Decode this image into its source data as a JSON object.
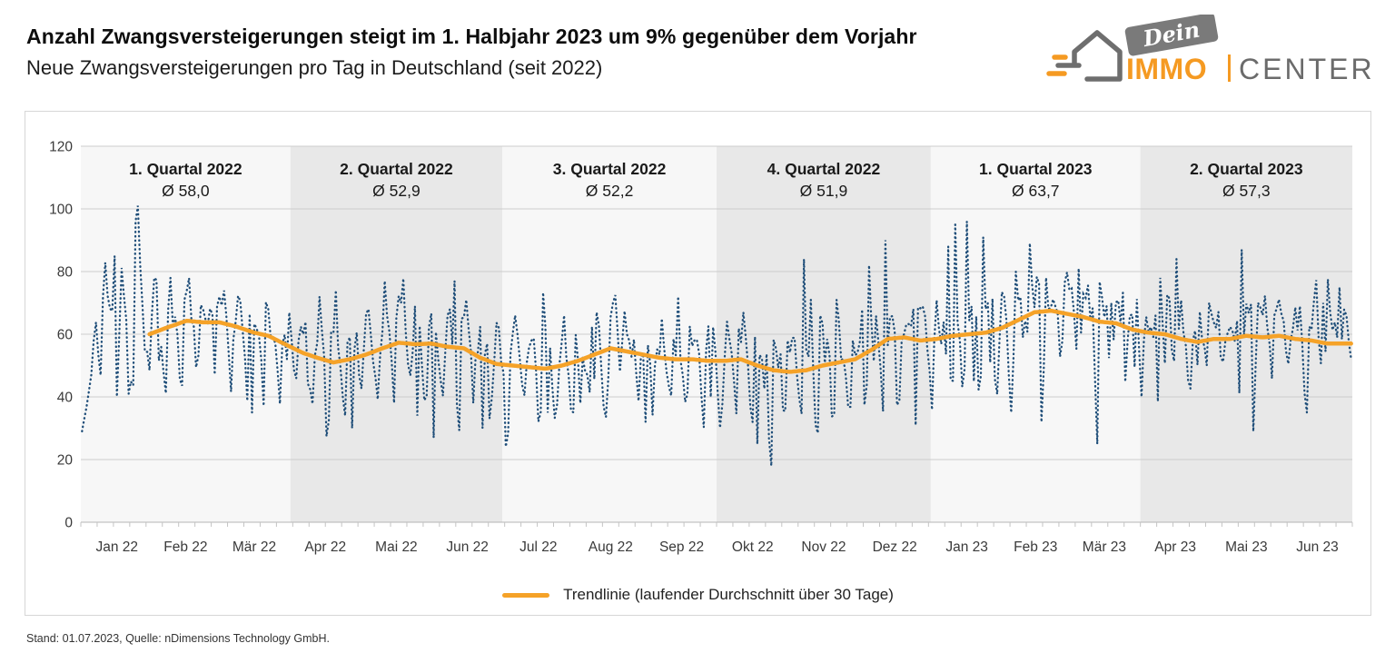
{
  "header": {
    "title": "Anzahl Zwangsversteigerungen steigt im 1. Halbjahr 2023 um 9% gegenüber dem Vorjahr",
    "subtitle": "Neue Zwangsversteigerungen pro Tag in Deutschland (seit 2022)"
  },
  "logo": {
    "banner_text": "Dein",
    "immo": "IMMO",
    "center": "CENTER",
    "orange": "#F59A22",
    "gray": "#6E6E6E"
  },
  "footer": {
    "text": "Stand: 01.07.2023, Quelle: nDimensions Technology GmbH."
  },
  "chart_data": {
    "type": "line",
    "title": "Neue Zwangsversteigerungen pro Tag in Deutschland (seit 2022)",
    "ylim": [
      0,
      120
    ],
    "yticks": [
      0,
      20,
      40,
      60,
      80,
      100,
      120
    ],
    "grid": true,
    "total_days": 546,
    "start_weekday": "Saturday",
    "month_labels": [
      "Jan 22",
      "Feb 22",
      "Mär 22",
      "Apr 22",
      "Mai 22",
      "Jun 22",
      "Jul 22",
      "Aug 22",
      "Sep 22",
      "Okt 22",
      "Nov 22",
      "Dez 22",
      "Jan 23",
      "Feb 23",
      "Mär 23",
      "Apr 23",
      "Mai 23",
      "Jun 23"
    ],
    "month_lengths": [
      31,
      28,
      31,
      30,
      31,
      30,
      31,
      31,
      30,
      31,
      30,
      31,
      31,
      28,
      31,
      30,
      31,
      30
    ],
    "quarters": [
      {
        "label": "1. Quartal 2022",
        "avg_label": "Ø 58,0",
        "avg": 58.0,
        "start_day": 0,
        "end_day": 90
      },
      {
        "label": "2. Quartal 2022",
        "avg_label": "Ø 52,9",
        "avg": 52.9,
        "start_day": 90,
        "end_day": 181
      },
      {
        "label": "3. Quartal 2022",
        "avg_label": "Ø 52,2",
        "avg": 52.2,
        "start_day": 181,
        "end_day": 273
      },
      {
        "label": "4. Quartal 2022",
        "avg_label": "Ø 51,9",
        "avg": 51.9,
        "start_day": 273,
        "end_day": 365
      },
      {
        "label": "1. Quartal 2023",
        "avg_label": "Ø 63,7",
        "avg": 63.7,
        "start_day": 365,
        "end_day": 455
      },
      {
        "label": "2. Quartal 2023",
        "avg_label": "Ø 57,3",
        "avg": 57.3,
        "start_day": 455,
        "end_day": 546
      }
    ],
    "legend": {
      "label": "Trendlinie (laufender Durchschnitt über 30 Tage)",
      "position": "bottom-center"
    },
    "colors": {
      "daily": "#1F4E79",
      "trend": "#F5A228",
      "band_light": "#F7F7F7",
      "band_dark": "#E8E8E8",
      "grid": "#CDCDCD",
      "axis": "#B5B5B5",
      "tick": "#C4C4C4",
      "label": "#3A3A3A",
      "quarter_text": "#1A1A1A",
      "frame": "#D6D6D6"
    },
    "trend_points": [
      [
        29,
        60
      ],
      [
        36,
        62
      ],
      [
        45,
        64.3
      ],
      [
        52,
        63.8
      ],
      [
        59,
        63.8
      ],
      [
        66,
        62.5
      ],
      [
        74,
        60.5
      ],
      [
        80,
        59.5
      ],
      [
        88,
        56.5
      ],
      [
        95,
        54
      ],
      [
        101,
        52.5
      ],
      [
        108,
        51
      ],
      [
        115,
        52
      ],
      [
        122,
        53.5
      ],
      [
        129,
        55.5
      ],
      [
        136,
        57.3
      ],
      [
        143,
        56.8
      ],
      [
        150,
        57
      ],
      [
        157,
        56
      ],
      [
        164,
        55.5
      ],
      [
        171,
        52.5
      ],
      [
        178,
        50.5
      ],
      [
        185,
        50
      ],
      [
        192,
        49.5
      ],
      [
        199,
        49
      ],
      [
        206,
        50
      ],
      [
        213,
        51.5
      ],
      [
        220,
        53.5
      ],
      [
        227,
        55.5
      ],
      [
        234,
        54.5
      ],
      [
        241,
        53.5
      ],
      [
        248,
        52.5
      ],
      [
        255,
        52
      ],
      [
        262,
        52
      ],
      [
        269,
        51.5
      ],
      [
        276,
        51.5
      ],
      [
        283,
        52
      ],
      [
        290,
        50
      ],
      [
        297,
        48.5
      ],
      [
        304,
        48
      ],
      [
        311,
        48.5
      ],
      [
        318,
        50
      ],
      [
        325,
        51
      ],
      [
        332,
        52
      ],
      [
        339,
        55
      ],
      [
        346,
        58.5
      ],
      [
        353,
        59
      ],
      [
        360,
        58
      ],
      [
        367,
        58.5
      ],
      [
        374,
        59.5
      ],
      [
        381,
        60
      ],
      [
        388,
        60.5
      ],
      [
        395,
        62
      ],
      [
        402,
        64.5
      ],
      [
        409,
        67
      ],
      [
        416,
        67.5
      ],
      [
        423,
        66.5
      ],
      [
        430,
        65.5
      ],
      [
        437,
        64
      ],
      [
        444,
        63.5
      ],
      [
        451,
        61.5
      ],
      [
        458,
        60.5
      ],
      [
        465,
        60
      ],
      [
        472,
        58.5
      ],
      [
        479,
        57.5
      ],
      [
        486,
        58.5
      ],
      [
        493,
        58.5
      ],
      [
        500,
        59.5
      ],
      [
        507,
        59
      ],
      [
        514,
        59.5
      ],
      [
        521,
        58.5
      ],
      [
        528,
        58
      ],
      [
        535,
        57
      ],
      [
        545,
        57
      ]
    ],
    "daily_series": {
      "name": "Neue Zwangsversteigerungen pro Tag",
      "style": "dotted",
      "seed": 20230701,
      "level_anchors": [
        [
          0,
          44
        ],
        [
          5,
          56
        ],
        [
          10,
          60
        ],
        [
          20,
          62
        ]
      ],
      "weekday_offsets_from_saturday": [
        -12,
        -16,
        4,
        7,
        7,
        5,
        0
      ],
      "noise_amplitude": 7,
      "spike_chance": 0.08,
      "spike_max": 15,
      "dip_chance": 0.07,
      "dip_max": 14,
      "clamp": [
        17,
        101
      ],
      "notable_points": [
        [
          0,
          29
        ],
        [
          1,
          33
        ],
        [
          2,
          37
        ],
        [
          3,
          42
        ],
        [
          4,
          47
        ],
        [
          9,
          72
        ],
        [
          14,
          85
        ],
        [
          20,
          41
        ],
        [
          23,
          96
        ],
        [
          24,
          101
        ],
        [
          25,
          82
        ],
        [
          31,
          78
        ],
        [
          38,
          78
        ],
        [
          45,
          74
        ],
        [
          52,
          68
        ],
        [
          59,
          72
        ],
        [
          66,
          64
        ],
        [
          73,
          35
        ],
        [
          80,
          68
        ],
        [
          88,
          52
        ],
        [
          95,
          60
        ],
        [
          102,
          72
        ],
        [
          109,
          74
        ],
        [
          116,
          30
        ],
        [
          123,
          68
        ],
        [
          130,
          77
        ],
        [
          137,
          70
        ],
        [
          144,
          34
        ],
        [
          151,
          27
        ],
        [
          158,
          68
        ],
        [
          160,
          77
        ],
        [
          165,
          71
        ],
        [
          172,
          30
        ],
        [
          179,
          62
        ],
        [
          186,
          66
        ],
        [
          193,
          58
        ],
        [
          200,
          35
        ],
        [
          207,
          66
        ],
        [
          214,
          38
        ],
        [
          221,
          67
        ],
        [
          228,
          70
        ],
        [
          235,
          58
        ],
        [
          242,
          32
        ],
        [
          249,
          65
        ],
        [
          256,
          72
        ],
        [
          263,
          58
        ],
        [
          270,
          40
        ],
        [
          277,
          64
        ],
        [
          284,
          67
        ],
        [
          290,
          25
        ],
        [
          296,
          18
        ],
        [
          303,
          58
        ],
        [
          310,
          84
        ],
        [
          317,
          66
        ],
        [
          324,
          71
        ],
        [
          331,
          58
        ],
        [
          338,
          82
        ],
        [
          345,
          90
        ],
        [
          352,
          58
        ],
        [
          358,
          31
        ],
        [
          366,
          58
        ],
        [
          372,
          88
        ],
        [
          375,
          95
        ],
        [
          380,
          96
        ],
        [
          383,
          45
        ],
        [
          387,
          91
        ],
        [
          394,
          58
        ],
        [
          399,
          35
        ],
        [
          401,
          80
        ],
        [
          407,
          89
        ],
        [
          412,
          32
        ],
        [
          414,
          78
        ],
        [
          421,
          58
        ],
        [
          428,
          81
        ],
        [
          436,
          25
        ],
        [
          442,
          70
        ],
        [
          449,
          58
        ],
        [
          456,
          58
        ],
        [
          463,
          78
        ],
        [
          470,
          84
        ],
        [
          477,
          58
        ],
        [
          484,
          70
        ],
        [
          491,
          58
        ],
        [
          498,
          87
        ],
        [
          503,
          29
        ],
        [
          505,
          70
        ],
        [
          512,
          66
        ],
        [
          519,
          58
        ],
        [
          526,
          35
        ],
        [
          533,
          70
        ],
        [
          540,
          75
        ],
        [
          545,
          52
        ]
      ]
    }
  }
}
